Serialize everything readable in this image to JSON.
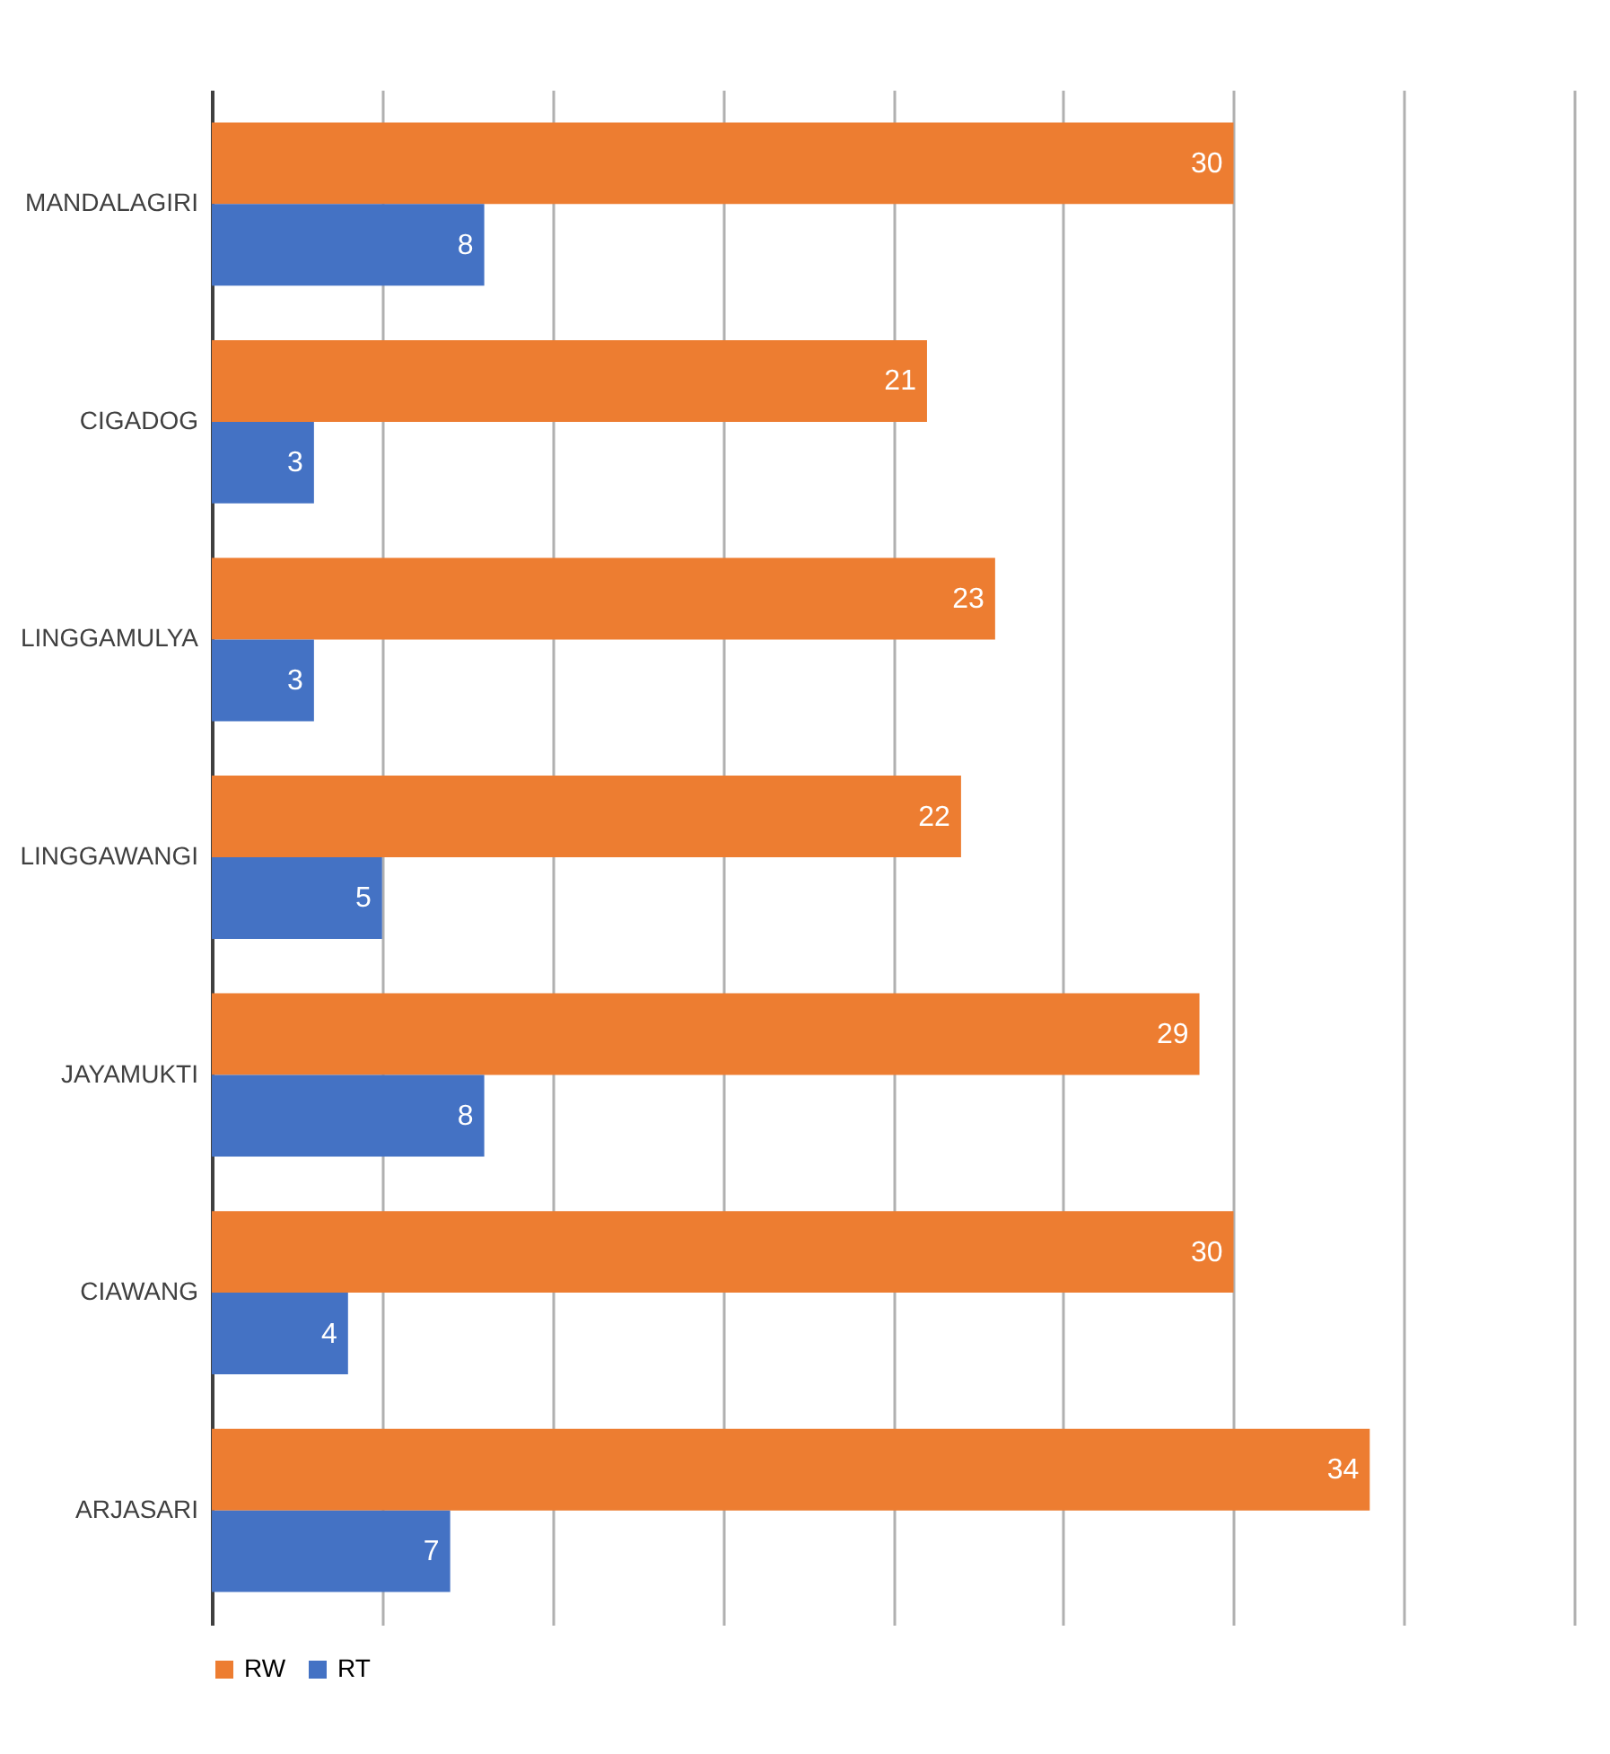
{
  "chart_data": {
    "type": "bar",
    "orientation": "horizontal",
    "categories": [
      "MANDALAGIRI",
      "CIGADOG",
      "LINGGAMULYA",
      "LINGGAWANGI",
      "JAYAMUKTI",
      "CIAWANG",
      "ARJASARI"
    ],
    "series": [
      {
        "name": "RW",
        "color": "#ed7d31",
        "values": [
          30,
          21,
          23,
          22,
          29,
          30,
          34
        ]
      },
      {
        "name": "RT",
        "color": "#4472c4",
        "values": [
          8,
          3,
          3,
          5,
          8,
          4,
          7
        ]
      }
    ],
    "xlim": [
      0,
      40
    ],
    "xticks": [
      {
        "value": 0,
        "label": null
      },
      {
        "value": 5,
        "label": null
      },
      {
        "value": 10,
        "label": null
      },
      {
        "value": 15,
        "label": null
      },
      {
        "value": 20,
        "label": null
      },
      {
        "value": 25,
        "label": null
      },
      {
        "value": 30,
        "label": null
      },
      {
        "value": 35,
        "label": null
      },
      {
        "value": 40,
        "label": null
      }
    ],
    "grid": "x",
    "tick_labels": "y",
    "data_labels": true,
    "legend": "bottom"
  }
}
